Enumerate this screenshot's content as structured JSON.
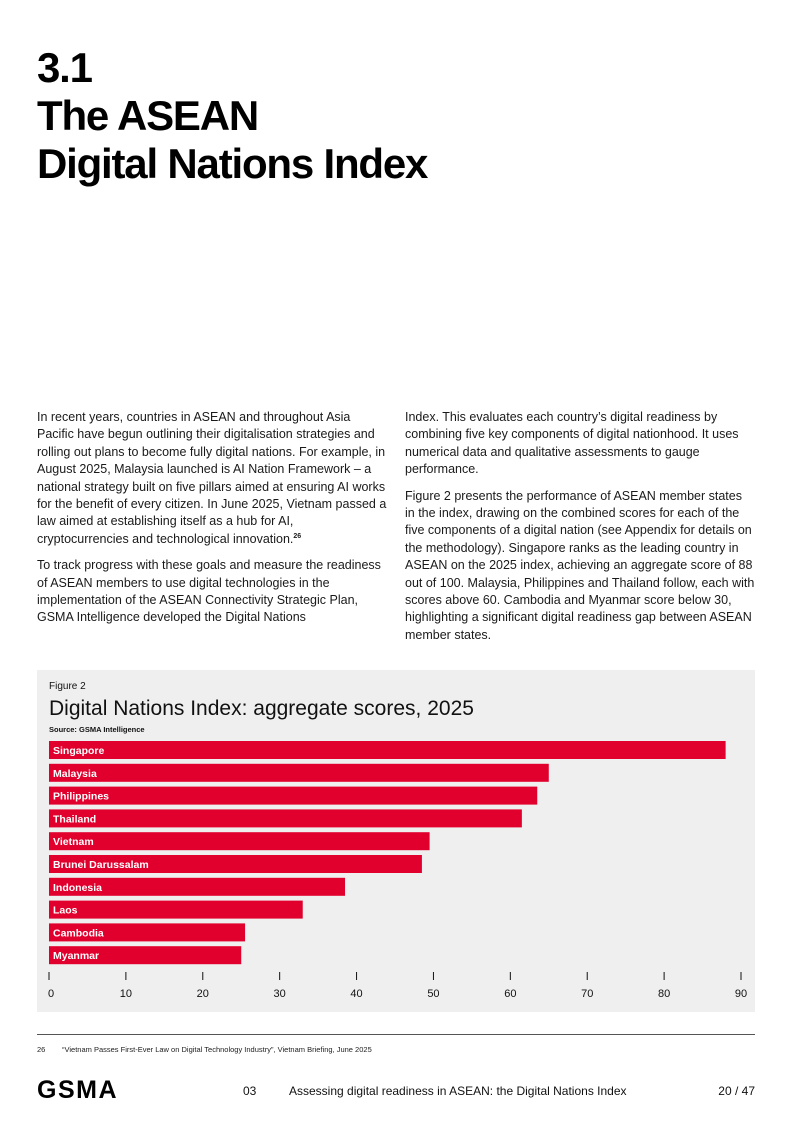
{
  "heading": {
    "number": "3.1",
    "line1": "The ASEAN",
    "line2": "Digital Nations Index"
  },
  "body": {
    "left": [
      "In recent years, countries in ASEAN and throughout Asia Pacific have begun outlining their digitalisation strategies and rolling out plans to become fully digital nations. For example, in August 2025, Malaysia launched is AI Nation Framework – a national strategy built on five pillars aimed at ensuring AI works for the benefit of every citizen. In June 2025, Vietnam passed a law aimed at establishing itself as a hub for AI, cryptocurrencies and technological innovation.",
      "To track progress with these goals and measure the readiness of ASEAN members to use digital technologies in the implementation of the ASEAN Connectivity Strategic Plan, GSMA Intelligence developed the Digital Nations"
    ],
    "footnote_ref": "26",
    "right": [
      "Index. This evaluates each country’s digital readiness by combining five key components of digital nationhood. It uses numerical data and qualitative assessments to gauge performance.",
      "Figure 2 presents the performance of ASEAN member states in the index, drawing on the combined scores for each of the five components of a digital nation (see Appendix for details on the methodology). Singapore ranks as the leading country in ASEAN on the 2025 index, achieving an aggregate score of 88 out of 100. Malaysia, Philippines and Thailand follow, each with scores above 60. Cambodia and Myanmar score below 30, highlighting a significant digital readiness gap between ASEAN member states."
    ]
  },
  "figure": {
    "label": "Figure 2",
    "title": "Digital Nations Index: aggregate scores, 2025",
    "source": "Source: GSMA Intelligence"
  },
  "chart_data": {
    "type": "bar",
    "orientation": "horizontal",
    "title": "Digital Nations Index: aggregate scores, 2025",
    "categories": [
      "Singapore",
      "Malaysia",
      "Philippines",
      "Thailand",
      "Vietnam",
      "Brunei Darussalam",
      "Indonesia",
      "Laos",
      "Cambodia",
      "Myanmar"
    ],
    "values": [
      88,
      65,
      63.5,
      61.5,
      49.5,
      48.5,
      38.5,
      33,
      25.5,
      25
    ],
    "xlim": [
      0,
      90
    ],
    "xticks": [
      0,
      10,
      20,
      30,
      40,
      50,
      60,
      70,
      80,
      90
    ],
    "xlabel": "",
    "ylabel": "",
    "grid": false,
    "bar_color": "#E1002D"
  },
  "footnote": {
    "number": "26",
    "text": "“Vietnam Passes First-Ever Law on Digital Technology Industry”, Vietnam Briefing, June 2025"
  },
  "footer": {
    "logo": "GSMA",
    "section": "03",
    "title": "Assessing digital readiness in ASEAN: the Digital Nations Index",
    "page": "20 / 47"
  }
}
